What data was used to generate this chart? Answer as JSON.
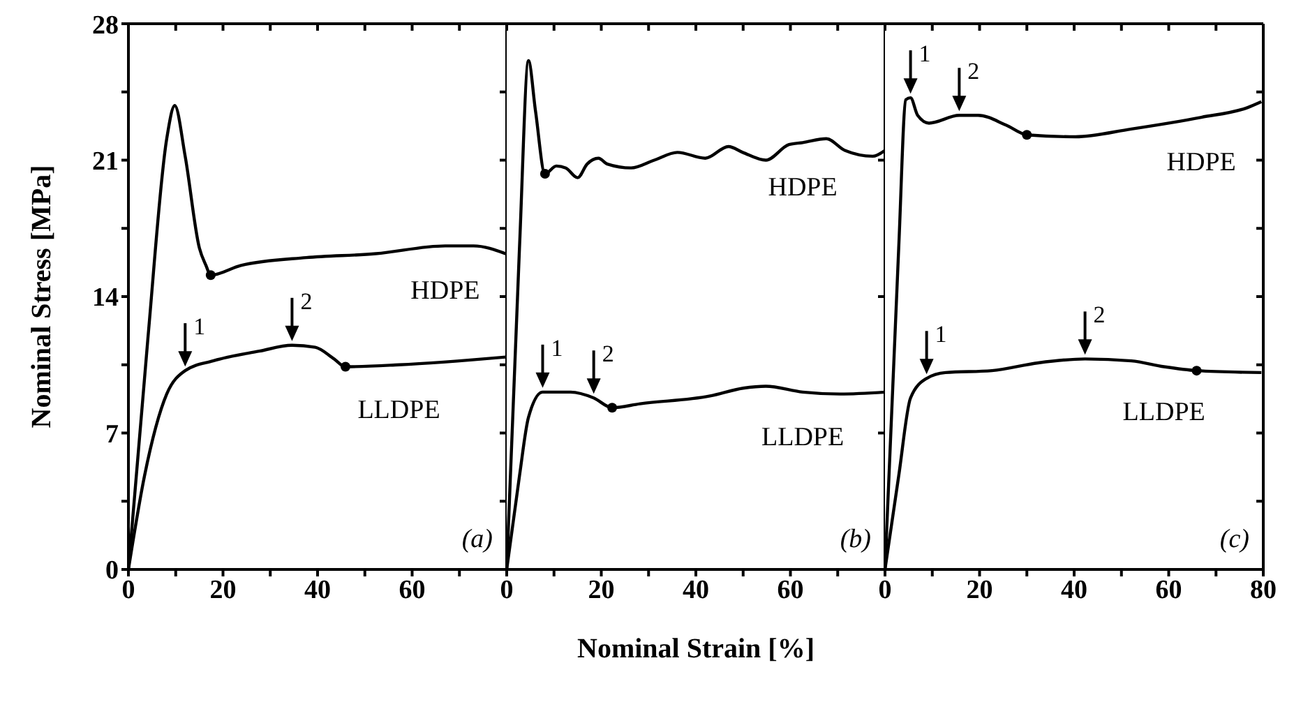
{
  "chart_data": [
    {
      "type": "line",
      "title": "(a)",
      "ylabel": "Nominal Stress [MPa]",
      "xlim": [
        0,
        80
      ],
      "ylim": [
        0,
        28
      ],
      "marker": "none",
      "line_style": "solid",
      "grid": false,
      "xticks": [
        0,
        {
          "value": 10,
          "label": null
        },
        20,
        {
          "value": 30,
          "label": null
        },
        40,
        {
          "value": 50,
          "label": null
        },
        60,
        {
          "value": 70,
          "label": null
        }
      ],
      "yticks": [
        0,
        {
          "value": 3.5,
          "label": null
        },
        7,
        {
          "value": 10.5,
          "label": null
        },
        14,
        {
          "value": 17.5,
          "label": null
        },
        21,
        {
          "value": 24.5,
          "label": null
        },
        28
      ],
      "series": [
        {
          "name": "HDPE",
          "color": "#000000",
          "x": [
            0,
            4.1,
            8.1,
            9.8,
            12,
            15,
            16.4,
            17.4,
            23.8,
            37.6,
            52.3,
            67,
            73,
            79.8
          ],
          "values": [
            0,
            11.8,
            22.1,
            23.8,
            21.2,
            16.5,
            15.6,
            15.1,
            15.6,
            16.0,
            16.2,
            16.6,
            16.6,
            16.2
          ]
        },
        {
          "name": "LLDPE",
          "color": "#000000",
          "x": [
            0,
            3.4,
            8.1,
            12,
            17.9,
            27.7,
            34.6,
            39.5,
            43.5,
            45.9,
            57.2,
            79.8
          ],
          "values": [
            0,
            4.8,
            9.0,
            10.2,
            10.7,
            11.2,
            11.5,
            11.4,
            10.8,
            10.4,
            10.5,
            10.9
          ]
        },
        {
          "type": "scatter",
          "color": "#000000",
          "marker": "circle",
          "x": [
            17.4,
            45.9
          ],
          "values": [
            15.1,
            10.4
          ]
        }
      ],
      "annotations": [
        {
          "text": "1",
          "x": 12,
          "y": 10.2
        },
        {
          "text": "2",
          "x": 34.6,
          "y": 11.5
        }
      ]
    },
    {
      "type": "line",
      "title": "(b)",
      "xlabel": "Nominal Strain [%]",
      "xlim": [
        0,
        80
      ],
      "ylim": [
        0,
        28
      ],
      "marker": "none",
      "line_style": "solid",
      "grid": false,
      "tick_labels": "x",
      "xticks": [
        0,
        {
          "value": 10,
          "label": null
        },
        20,
        {
          "value": 30,
          "label": null
        },
        40,
        {
          "value": 50,
          "label": null
        },
        60,
        {
          "value": 70,
          "label": null
        }
      ],
      "yticks": [
        {
          "value": 0,
          "label": null
        },
        {
          "value": 7,
          "label": null
        },
        {
          "value": 14,
          "label": null
        },
        {
          "value": 21,
          "label": null
        },
        {
          "value": 28,
          "label": null
        }
      ],
      "series": [
        {
          "name": "HDPE",
          "color": "#000000",
          "x": [
            0,
            2.7,
            4.6,
            6.1,
            8.1,
            10.5,
            12.5,
            15,
            17,
            19.4,
            21.3,
            26.3,
            31.2,
            36.1,
            42,
            46.9,
            49.9,
            54.8,
            59.7,
            62.6,
            67.6,
            71.5,
            77.4,
            80
          ],
          "values": [
            0,
            16.5,
            26.1,
            23.5,
            20.3,
            20.7,
            20.6,
            20.1,
            20.8,
            21.1,
            20.8,
            20.6,
            21.0,
            21.4,
            21.1,
            21.7,
            21.4,
            21.0,
            21.8,
            21.9,
            22.1,
            21.5,
            21.2,
            21.5
          ]
        },
        {
          "name": "LLDPE",
          "color": "#000000",
          "x": [
            0,
            2.7,
            4.6,
            7.6,
            13.5,
            18.4,
            22.3,
            28.2,
            43,
            50,
            54.8,
            62.6,
            70.5,
            80
          ],
          "values": [
            0,
            4.8,
            7.8,
            9.1,
            9.1,
            8.8,
            8.3,
            8.5,
            8.9,
            9.3,
            9.4,
            9.1,
            9.0,
            9.1
          ]
        },
        {
          "type": "scatter",
          "color": "#000000",
          "marker": "circle",
          "x": [
            8.1,
            22.3
          ],
          "values": [
            20.3,
            8.3
          ]
        }
      ],
      "annotations": [
        {
          "text": "1",
          "x": 7.6,
          "y": 9.1
        },
        {
          "text": "2",
          "x": 18.4,
          "y": 8.8
        }
      ]
    },
    {
      "type": "line",
      "title": "(c)",
      "xlim": [
        0,
        80
      ],
      "ylim": [
        0,
        28
      ],
      "marker": "none",
      "line_style": "solid",
      "grid": false,
      "tick_labels": "x",
      "xticks": [
        0,
        {
          "value": 10,
          "label": null
        },
        20,
        {
          "value": 30,
          "label": null
        },
        40,
        {
          "value": 50,
          "label": null
        },
        60,
        {
          "value": 70,
          "label": null
        },
        80
      ],
      "yticks": [
        {
          "value": 0,
          "label": null
        },
        {
          "value": 3.5,
          "label": null
        },
        {
          "value": 7,
          "label": null
        },
        {
          "value": 10.5,
          "label": null
        },
        {
          "value": 14,
          "label": null
        },
        {
          "value": 17.5,
          "label": null
        },
        {
          "value": 21,
          "label": null
        },
        {
          "value": 24.5,
          "label": null
        },
        {
          "value": 28,
          "label": null
        }
      ],
      "series": [
        {
          "name": "HDPE",
          "color": "#000000",
          "x": [
            0,
            2.9,
            4.4,
            5.4,
            6.9,
            9.3,
            15.7,
            19.7,
            25.6,
            30,
            40.3,
            52.1,
            66.9,
            76.7,
            79.6
          ],
          "values": [
            0,
            16.5,
            24.1,
            24.2,
            23.3,
            22.9,
            23.3,
            23.3,
            22.8,
            22.3,
            22.2,
            22.6,
            23.2,
            23.7,
            24.0
          ]
        },
        {
          "name": "LLDPE",
          "color": "#000000",
          "x": [
            0,
            2.9,
            5.4,
            8.8,
            12.8,
            22.6,
            32.4,
            42.3,
            52.1,
            59,
            65.9,
            79.6
          ],
          "values": [
            0,
            4.8,
            8.8,
            9.8,
            10.1,
            10.2,
            10.6,
            10.8,
            10.7,
            10.4,
            10.2,
            10.1
          ]
        },
        {
          "type": "scatter",
          "color": "#000000",
          "marker": "circle",
          "x": [
            30,
            65.9
          ],
          "values": [
            22.3,
            10.2
          ]
        }
      ],
      "annotations": [
        {
          "text": "1",
          "x": 5.4,
          "y": 24.2
        },
        {
          "text": "2",
          "x": 15.7,
          "y": 23.3
        },
        {
          "text": "1",
          "x": 8.8,
          "y": 9.8
        },
        {
          "text": "2",
          "x": 42.3,
          "y": 10.8
        }
      ]
    }
  ]
}
